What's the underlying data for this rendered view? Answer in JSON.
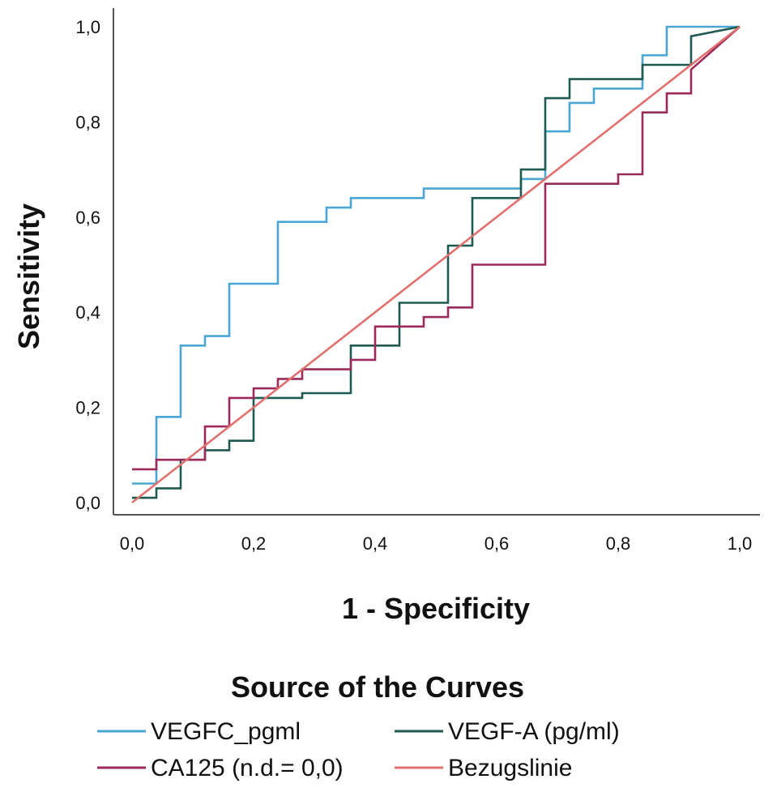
{
  "chart_data": {
    "type": "line",
    "title": "",
    "xlabel": "1 - Specificity",
    "ylabel": "Sensitivity",
    "xlim": [
      0,
      1
    ],
    "ylim": [
      0,
      1
    ],
    "x_ticks": [
      "0,0",
      "0,2",
      "0,4",
      "0,6",
      "0,8",
      "1,0"
    ],
    "y_ticks": [
      "0,0",
      "0,2",
      "0,4",
      "0,6",
      "0,8",
      "1,0"
    ],
    "grid": false,
    "legend": {
      "title": "Source of the Curves",
      "placement": "bottom"
    },
    "series": [
      {
        "name": "VEGFC_pgml",
        "color": "#4aa6d2",
        "step": true,
        "points": [
          [
            0.0,
            0.04
          ],
          [
            0.04,
            0.04
          ],
          [
            0.04,
            0.18
          ],
          [
            0.08,
            0.18
          ],
          [
            0.08,
            0.33
          ],
          [
            0.12,
            0.33
          ],
          [
            0.12,
            0.35
          ],
          [
            0.16,
            0.35
          ],
          [
            0.16,
            0.46
          ],
          [
            0.24,
            0.46
          ],
          [
            0.24,
            0.59
          ],
          [
            0.32,
            0.59
          ],
          [
            0.32,
            0.62
          ],
          [
            0.36,
            0.62
          ],
          [
            0.36,
            0.64
          ],
          [
            0.48,
            0.64
          ],
          [
            0.48,
            0.66
          ],
          [
            0.64,
            0.66
          ],
          [
            0.64,
            0.68
          ],
          [
            0.68,
            0.68
          ],
          [
            0.68,
            0.78
          ],
          [
            0.72,
            0.78
          ],
          [
            0.72,
            0.84
          ],
          [
            0.76,
            0.84
          ],
          [
            0.76,
            0.87
          ],
          [
            0.84,
            0.87
          ],
          [
            0.84,
            0.94
          ],
          [
            0.88,
            0.94
          ],
          [
            0.88,
            1.0
          ],
          [
            1.0,
            1.0
          ]
        ]
      },
      {
        "name": "VEGF-A (pg/ml)",
        "color": "#1f5a52",
        "step": true,
        "points": [
          [
            0.0,
            0.01
          ],
          [
            0.04,
            0.01
          ],
          [
            0.04,
            0.03
          ],
          [
            0.08,
            0.03
          ],
          [
            0.08,
            0.09
          ],
          [
            0.12,
            0.09
          ],
          [
            0.12,
            0.11
          ],
          [
            0.16,
            0.11
          ],
          [
            0.16,
            0.13
          ],
          [
            0.2,
            0.13
          ],
          [
            0.2,
            0.22
          ],
          [
            0.28,
            0.22
          ],
          [
            0.28,
            0.23
          ],
          [
            0.36,
            0.23
          ],
          [
            0.36,
            0.33
          ],
          [
            0.44,
            0.33
          ],
          [
            0.44,
            0.42
          ],
          [
            0.52,
            0.42
          ],
          [
            0.52,
            0.54
          ],
          [
            0.56,
            0.54
          ],
          [
            0.56,
            0.64
          ],
          [
            0.64,
            0.64
          ],
          [
            0.64,
            0.7
          ],
          [
            0.68,
            0.7
          ],
          [
            0.68,
            0.85
          ],
          [
            0.72,
            0.85
          ],
          [
            0.72,
            0.89
          ],
          [
            0.84,
            0.89
          ],
          [
            0.84,
            0.92
          ],
          [
            0.92,
            0.92
          ],
          [
            0.92,
            0.98
          ],
          [
            1.0,
            1.0
          ]
        ]
      },
      {
        "name": "CA125 (n.d.= 0,0)",
        "color": "#9c2a5a",
        "step": true,
        "points": [
          [
            0.0,
            0.07
          ],
          [
            0.04,
            0.07
          ],
          [
            0.04,
            0.09
          ],
          [
            0.12,
            0.09
          ],
          [
            0.12,
            0.16
          ],
          [
            0.16,
            0.16
          ],
          [
            0.16,
            0.22
          ],
          [
            0.2,
            0.22
          ],
          [
            0.2,
            0.24
          ],
          [
            0.24,
            0.24
          ],
          [
            0.24,
            0.26
          ],
          [
            0.28,
            0.26
          ],
          [
            0.28,
            0.28
          ],
          [
            0.36,
            0.28
          ],
          [
            0.36,
            0.3
          ],
          [
            0.4,
            0.3
          ],
          [
            0.4,
            0.37
          ],
          [
            0.48,
            0.37
          ],
          [
            0.48,
            0.39
          ],
          [
            0.52,
            0.39
          ],
          [
            0.52,
            0.41
          ],
          [
            0.56,
            0.41
          ],
          [
            0.56,
            0.5
          ],
          [
            0.68,
            0.5
          ],
          [
            0.68,
            0.67
          ],
          [
            0.8,
            0.67
          ],
          [
            0.8,
            0.69
          ],
          [
            0.84,
            0.69
          ],
          [
            0.84,
            0.82
          ],
          [
            0.88,
            0.82
          ],
          [
            0.88,
            0.86
          ],
          [
            0.92,
            0.86
          ],
          [
            0.92,
            0.91
          ],
          [
            1.0,
            1.0
          ]
        ]
      },
      {
        "name": "Bezugslinie",
        "color": "#e0706e",
        "step": false,
        "points": [
          [
            0.0,
            0.0
          ],
          [
            1.0,
            1.0
          ]
        ]
      }
    ]
  }
}
